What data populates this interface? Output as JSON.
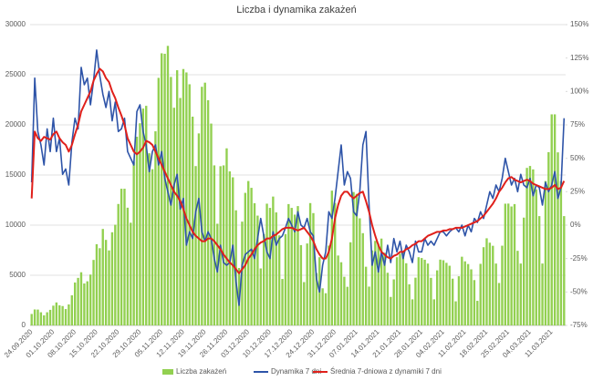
{
  "chart_data": {
    "type": "combo",
    "title": "Liczba i dynamika zakażeń",
    "categories": [
      "24.09.2020",
      null,
      null,
      null,
      null,
      null,
      null,
      "01.10.2020",
      null,
      null,
      null,
      null,
      null,
      null,
      "08.10.2020",
      null,
      null,
      null,
      null,
      null,
      null,
      "15.10.2020",
      null,
      null,
      null,
      null,
      null,
      null,
      "22.10.2020",
      null,
      null,
      null,
      null,
      null,
      null,
      "29.10.2020",
      null,
      null,
      null,
      null,
      null,
      null,
      "05.11.2020",
      null,
      null,
      null,
      null,
      null,
      null,
      "12.11.2020",
      null,
      null,
      null,
      null,
      null,
      null,
      "19.11.2020",
      null,
      null,
      null,
      null,
      null,
      null,
      "26.11.2020",
      null,
      null,
      null,
      null,
      null,
      null,
      "03.12.2020",
      null,
      null,
      null,
      null,
      null,
      null,
      "10.12.2020",
      null,
      null,
      null,
      null,
      null,
      null,
      "17.12.2020",
      null,
      null,
      null,
      null,
      null,
      null,
      "24.12.2020",
      null,
      null,
      null,
      null,
      null,
      null,
      "31.12.2020",
      null,
      null,
      null,
      null,
      null,
      null,
      "07.01.2021",
      null,
      null,
      null,
      null,
      null,
      null,
      "14.01.2021",
      null,
      null,
      null,
      null,
      null,
      null,
      "21.01.2021",
      null,
      null,
      null,
      null,
      null,
      null,
      "28.01.2021",
      null,
      null,
      null,
      null,
      null,
      null,
      "04.02.2021",
      null,
      null,
      null,
      null,
      null,
      null,
      "11.02.2021",
      null,
      null,
      null,
      null,
      null,
      null,
      "18.02.2021",
      null,
      null,
      null,
      null,
      null,
      null,
      "25.02.2021",
      null,
      null,
      null,
      null,
      null,
      null,
      "04.03.2021",
      null,
      null,
      null,
      null,
      null,
      null,
      "11.03.2021",
      null,
      null,
      null,
      null
    ],
    "series": [
      {
        "name": "Liczba zakażeń",
        "type": "bar",
        "color": "#92d050",
        "values": [
          1140,
          1590,
          1580,
          1310,
          1000,
          1310,
          1550,
          1970,
          2290,
          2000,
          1930,
          1630,
          2090,
          3000,
          4280,
          4740,
          5300,
          4180,
          4400,
          5070,
          6530,
          8100,
          7700,
          9620,
          8530,
          7480,
          9290,
          10040,
          12110,
          13630,
          13630,
          11740,
          10240,
          16300,
          18820,
          20160,
          21630,
          21900,
          17170,
          15580,
          19360,
          24690,
          27140,
          27090,
          27880,
          24780,
          21710,
          25450,
          22680,
          25570,
          25230,
          24050,
          20820,
          15890,
          19150,
          23800,
          24210,
          22460,
          20130,
          15960,
          10140,
          15880,
          15960,
          17660,
          15360,
          14770,
          11480,
          5730,
          10350,
          13220,
          14400,
          13720,
          12190,
          10950,
          5680,
          9110,
          12140,
          11720,
          12850,
          11270,
          8980,
          4630,
          9110,
          12100,
          11720,
          11050,
          11900,
          8010,
          4320,
          8170,
          12200,
          11200,
          5230,
          6800,
          3700,
          3210,
          7960,
          13440,
          12220,
          6970,
          6300,
          4850,
          3850,
          8290,
          13300,
          13120,
          10680,
          9200,
          5850,
          3870,
          7480,
          8430,
          8160,
          8660,
          7250,
          5250,
          2840,
          4590,
          6800,
          7160,
          7370,
          6200,
          4100,
          2600,
          4760,
          6800,
          6720,
          6550,
          6170,
          4740,
          2600,
          5490,
          6560,
          6500,
          6240,
          5950,
          4660,
          2400,
          4900,
          6850,
          6390,
          6120,
          5590,
          4520,
          2450,
          6140,
          7800,
          8690,
          8250,
          7940,
          6170,
          4230,
          7950,
          12140,
          12150,
          11860,
          12100,
          7440,
          6170,
          10750,
          15710,
          15900,
          15560,
          13570,
          10900,
          6170,
          14400,
          17280,
          21050,
          21050,
          17260,
          14400,
          10900
        ]
      },
      {
        "name": "Dynamika 7 dni",
        "type": "line",
        "axis": "y2",
        "color": "#2e54a8",
        "values": [
          32,
          110,
          70,
          60,
          45,
          72,
          55,
          80,
          55,
          65,
          38,
          42,
          30,
          62,
          80,
          72,
          118,
          105,
          110,
          90,
          108,
          131,
          112,
          98,
          88,
          100,
          78,
          92,
          70,
          72,
          80,
          55,
          50,
          45,
          85,
          90,
          70,
          60,
          40,
          55,
          60,
          45,
          55,
          35,
          25,
          15,
          30,
          38,
          12,
          20,
          -15,
          -5,
          -10,
          10,
          20,
          -5,
          -12,
          -5,
          -10,
          -25,
          -35,
          -15,
          -28,
          -30,
          -28,
          -15,
          -42,
          -60,
          -30,
          -22,
          -20,
          -18,
          -25,
          -10,
          5,
          -8,
          -20,
          -25,
          -5,
          -15,
          -10,
          -8,
          -2,
          5,
          0,
          -5,
          10,
          0,
          -2,
          5,
          -5,
          -8,
          -40,
          -50,
          -30,
          -20,
          10,
          5,
          20,
          40,
          60,
          30,
          40,
          35,
          10,
          7,
          25,
          60,
          70,
          15,
          -30,
          -20,
          -35,
          -20,
          -30,
          -15,
          -28,
          -10,
          -20,
          -12,
          -25,
          -15,
          -20,
          -28,
          -12,
          -20,
          -20,
          -10,
          -15,
          -12,
          -15,
          -10,
          -5,
          -5,
          -8,
          -5,
          -3,
          -2,
          -5,
          0,
          -8,
          0,
          -5,
          5,
          2,
          10,
          5,
          15,
          25,
          20,
          30,
          25,
          35,
          50,
          40,
          30,
          35,
          25,
          38,
          30,
          28,
          35,
          22,
          30,
          28,
          15,
          32,
          25,
          30,
          40,
          20,
          28,
          80
        ]
      },
      {
        "name": "Średnia 7-dniowa z dynamiki 7 dni",
        "type": "line",
        "axis": "y2",
        "color": "#e0201b",
        "values": [
          20,
          70,
          65,
          63,
          66,
          65,
          64,
          68,
          70,
          65,
          62,
          60,
          55,
          60,
          68,
          75,
          85,
          90,
          95,
          100,
          108,
          113,
          117,
          115,
          110,
          107,
          100,
          95,
          88,
          82,
          75,
          65,
          60,
          55,
          53,
          55,
          58,
          63,
          62,
          60,
          55,
          50,
          45,
          40,
          35,
          30,
          25,
          22,
          18,
          12,
          5,
          0,
          -5,
          -8,
          -10,
          -12,
          -12,
          -10,
          -10,
          -12,
          -15,
          -18,
          -22,
          -25,
          -28,
          -30,
          -33,
          -36,
          -33,
          -30,
          -25,
          -22,
          -18,
          -15,
          -13,
          -12,
          -10,
          -10,
          -8,
          -7,
          -5,
          -3,
          -2,
          -2,
          -2,
          -3,
          -4,
          -3,
          -2,
          -5,
          -8,
          -12,
          -18,
          -22,
          -25,
          -25,
          -20,
          -10,
          5,
          15,
          22,
          25,
          25,
          22,
          20,
          22,
          24,
          25,
          18,
          10,
          0,
          -8,
          -15,
          -20,
          -22,
          -24,
          -25,
          -23,
          -22,
          -20,
          -20,
          -18,
          -17,
          -15,
          -14,
          -12,
          -12,
          -10,
          -8,
          -7,
          -6,
          -5,
          -5,
          -4,
          -4,
          -3,
          -3,
          -2,
          -2,
          -2,
          -1,
          0,
          1,
          2,
          3,
          5,
          7,
          10,
          13,
          16,
          20,
          25,
          28,
          32,
          35,
          36,
          34,
          33,
          32,
          33,
          34,
          33,
          31,
          30,
          29,
          28,
          27,
          27,
          28,
          30,
          27,
          28,
          33
        ]
      }
    ],
    "ylim": [
      0,
      30000
    ],
    "yticks": [
      0,
      5000,
      10000,
      15000,
      20000,
      25000,
      30000
    ],
    "y2lim": [
      -75,
      150
    ],
    "y2ticks": [
      {
        "value": -75,
        "label": "-75%"
      },
      {
        "value": -50,
        "label": "-50%"
      },
      {
        "value": -25,
        "label": "-25%"
      },
      {
        "value": 0,
        "label": "0%"
      },
      {
        "value": 25,
        "label": "25%"
      },
      {
        "value": 50,
        "label": "50%"
      },
      {
        "value": 75,
        "label": "75%"
      },
      {
        "value": 100,
        "label": "100%"
      },
      {
        "value": 125,
        "label": "125%"
      },
      {
        "value": 150,
        "label": "150%"
      }
    ],
    "grid": true,
    "legend": "bottom"
  }
}
